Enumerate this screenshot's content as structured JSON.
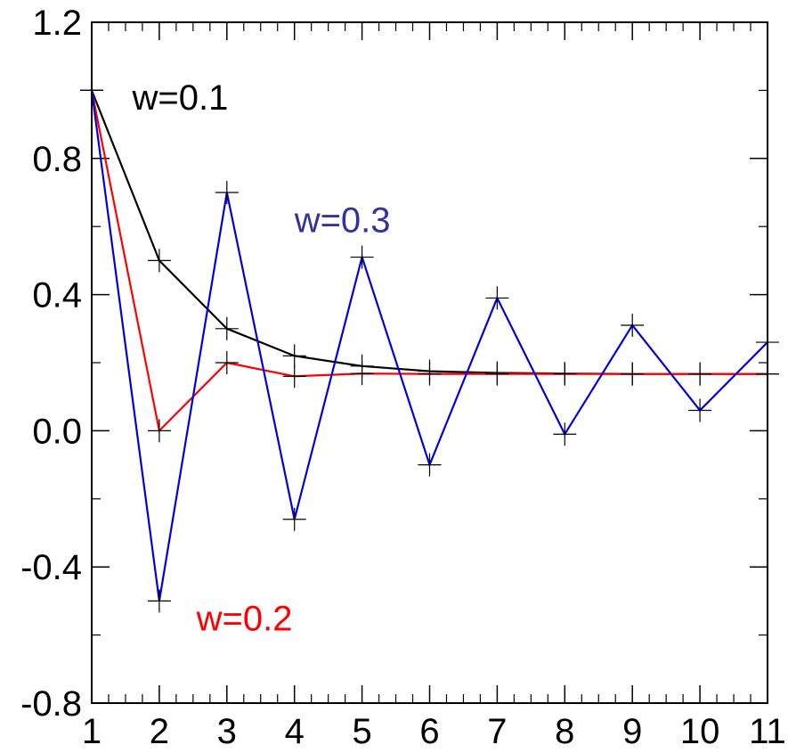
{
  "chart_data": {
    "type": "line",
    "title": "",
    "xlabel": "",
    "ylabel": "",
    "x": [
      1,
      2,
      3,
      4,
      5,
      6,
      7,
      8,
      9,
      10,
      11
    ],
    "xlim": [
      1,
      11
    ],
    "ylim": [
      -0.8,
      1.2
    ],
    "xticks": [
      1,
      2,
      3,
      4,
      5,
      6,
      7,
      8,
      9,
      10,
      11
    ],
    "yticks": [
      -0.8,
      -0.4,
      0.0,
      0.4,
      0.8,
      1.2
    ],
    "ytick_labels": [
      "-0.8",
      "-0.4",
      "0.0",
      "0.4",
      "0.8",
      "1.2"
    ],
    "marker": "plus",
    "grid": false,
    "series": [
      {
        "name": "w=0.1",
        "color": "#000000",
        "values": [
          1.0,
          0.5,
          0.3,
          0.22,
          0.19,
          0.175,
          0.17,
          0.168,
          0.167,
          0.167,
          0.167
        ]
      },
      {
        "name": "w=0.2",
        "color": "#ff0000",
        "values": [
          1.0,
          0.0,
          0.2,
          0.16,
          0.168,
          0.167,
          0.167,
          0.167,
          0.167,
          0.167,
          0.167
        ]
      },
      {
        "name": "w=0.3",
        "color": "#0000dd",
        "values": [
          1.0,
          -0.5,
          0.7,
          -0.26,
          0.51,
          -0.1,
          0.39,
          -0.01,
          0.31,
          0.06,
          0.26
        ]
      }
    ],
    "annotations": [
      {
        "text": "w=0.1",
        "x": 1.6,
        "y": 0.98,
        "color": "#000000"
      },
      {
        "text": "w=0.3",
        "x": 4.0,
        "y": 0.62,
        "color": "#333399"
      },
      {
        "text": "w=0.2",
        "x": 2.55,
        "y": -0.55,
        "color": "#ff0000"
      }
    ]
  }
}
